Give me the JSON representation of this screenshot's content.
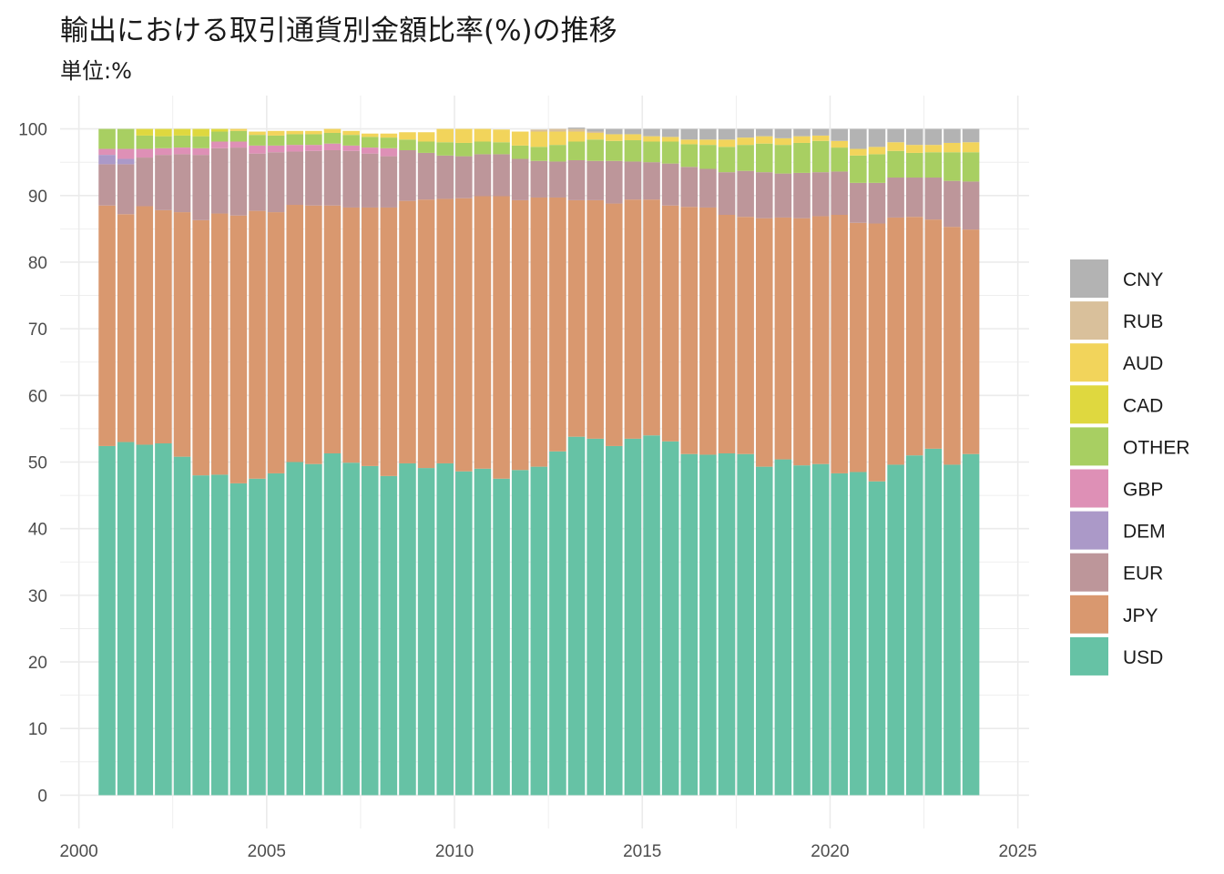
{
  "chart_data": {
    "type": "bar",
    "stacked": true,
    "title": "輸出における取引通貨別金額比率(%)の推移",
    "subtitle": "単位:%",
    "xlabel": "",
    "ylabel": "",
    "xlim": [
      1999.5,
      2025.3
    ],
    "ylim": [
      -5,
      105
    ],
    "xticks": [
      2000,
      2005,
      2010,
      2015,
      2020,
      2025
    ],
    "yticks": [
      0,
      10,
      20,
      30,
      40,
      50,
      60,
      70,
      80,
      90,
      100
    ],
    "grid": true,
    "legend_position": "right",
    "x": [
      2000.75,
      2001.25,
      2001.75,
      2002.25,
      2002.75,
      2003.25,
      2003.75,
      2004.25,
      2004.75,
      2005.25,
      2005.75,
      2006.25,
      2006.75,
      2007.25,
      2007.75,
      2008.25,
      2008.75,
      2009.25,
      2009.75,
      2010.25,
      2010.75,
      2011.25,
      2011.75,
      2012.25,
      2012.75,
      2013.25,
      2013.75,
      2014.25,
      2014.75,
      2015.25,
      2015.75,
      2016.25,
      2016.75,
      2017.25,
      2017.75,
      2018.25,
      2018.75,
      2019.25,
      2019.75,
      2020.25,
      2020.75,
      2021.25,
      2021.75,
      2022.25,
      2022.75,
      2023.25,
      2023.75
    ],
    "series": [
      {
        "name": "USD",
        "color": "#66c2a5",
        "values": [
          52.4,
          53.0,
          52.6,
          52.8,
          50.8,
          48.0,
          48.1,
          46.8,
          47.5,
          48.3,
          50.0,
          49.7,
          51.3,
          49.9,
          49.4,
          47.9,
          49.8,
          49.1,
          49.8,
          48.6,
          49.0,
          47.5,
          48.8,
          49.3,
          51.6,
          53.8,
          53.5,
          52.4,
          53.5,
          54.0,
          53.1,
          51.2,
          51.1,
          51.3,
          51.2,
          49.3,
          50.4,
          49.5,
          49.7,
          48.3,
          48.5,
          47.1,
          49.6,
          51.0,
          52.0,
          49.6,
          51.2
        ]
      },
      {
        "name": "JPY",
        "color": "#d9986f",
        "values": [
          36.1,
          34.2,
          35.8,
          35.0,
          36.7,
          38.3,
          39.2,
          40.2,
          40.2,
          39.2,
          38.6,
          38.8,
          37.2,
          38.3,
          38.8,
          40.3,
          39.4,
          40.3,
          39.7,
          41.0,
          40.9,
          42.4,
          40.5,
          40.4,
          38.1,
          35.5,
          35.8,
          36.4,
          35.9,
          35.4,
          35.4,
          37.1,
          37.1,
          35.8,
          35.6,
          37.3,
          36.3,
          37.1,
          37.2,
          38.8,
          37.4,
          38.7,
          37.1,
          35.8,
          34.4,
          35.7,
          33.7
        ]
      },
      {
        "name": "EUR",
        "color": "#bd969a",
        "values": [
          6.2,
          7.5,
          7.3,
          8.3,
          8.7,
          9.8,
          9.8,
          10.2,
          8.6,
          9.0,
          8.0,
          8.2,
          8.3,
          8.5,
          8.1,
          7.7,
          7.6,
          7.0,
          6.5,
          6.3,
          6.3,
          6.3,
          6.2,
          5.5,
          5.4,
          6.0,
          5.9,
          6.4,
          5.7,
          5.6,
          6.3,
          6.0,
          5.8,
          6.4,
          6.9,
          6.9,
          6.6,
          6.8,
          6.6,
          6.5,
          6.0,
          6.1,
          6.0,
          5.9,
          6.3,
          6.9,
          7.2
        ]
      },
      {
        "name": "DEM",
        "color": "#ab99c8",
        "values": [
          1.4,
          0.8,
          0,
          0,
          0,
          0,
          0,
          0,
          0,
          0,
          0,
          0,
          0,
          0,
          0,
          0,
          0,
          0,
          0,
          0,
          0,
          0,
          0,
          0,
          0,
          0,
          0,
          0,
          0,
          0,
          0,
          0,
          0,
          0,
          0,
          0,
          0,
          0,
          0,
          0,
          0,
          0,
          0,
          0,
          0,
          0,
          0
        ]
      },
      {
        "name": "GBP",
        "color": "#de90b6",
        "values": [
          0.9,
          1.5,
          1.3,
          1.0,
          1.0,
          1.0,
          1.0,
          0.9,
          1.2,
          1.0,
          1.0,
          0.9,
          1.0,
          0.8,
          0.9,
          1.2,
          0,
          0,
          0,
          0,
          0,
          0,
          0,
          0,
          0,
          0,
          0,
          0,
          0,
          0,
          0,
          0,
          0,
          0,
          0,
          0,
          0,
          0,
          0,
          0,
          0,
          0,
          0,
          0,
          0,
          0,
          0
        ]
      },
      {
        "name": "OTHER",
        "color": "#a8cf62",
        "values": [
          3.0,
          3.0,
          2.0,
          1.8,
          1.8,
          1.8,
          1.5,
          1.6,
          1.6,
          1.5,
          1.6,
          1.6,
          1.6,
          1.6,
          1.6,
          1.6,
          1.6,
          1.7,
          2.0,
          2.0,
          1.9,
          1.8,
          2.0,
          2.1,
          2.5,
          2.8,
          3.2,
          3.0,
          3.2,
          3.1,
          3.3,
          3.4,
          3.6,
          3.8,
          3.9,
          4.3,
          4.3,
          4.5,
          4.7,
          3.6,
          4.1,
          4.3,
          4.0,
          3.7,
          3.8,
          4.3,
          4.4
        ]
      },
      {
        "name": "CAD",
        "color": "#dfd83f",
        "values": [
          0,
          0,
          1.0,
          1.1,
          1.0,
          1.1,
          0.4,
          0,
          0,
          0,
          0,
          0,
          0,
          0,
          0,
          0,
          0,
          0,
          0,
          0,
          0,
          0,
          0,
          0,
          0,
          0,
          0,
          0,
          0,
          0,
          0,
          0,
          0,
          0,
          0,
          0,
          0,
          0,
          0,
          0,
          0,
          0,
          0,
          0,
          0,
          0,
          0
        ]
      },
      {
        "name": "AUD",
        "color": "#f2d45b",
        "values": [
          0,
          0,
          0,
          0,
          0,
          0,
          0,
          0.3,
          0.5,
          0.7,
          0.5,
          0.5,
          0.6,
          0.6,
          0.5,
          0.6,
          1.1,
          1.4,
          2.0,
          2.1,
          1.9,
          1.9,
          2.1,
          2.3,
          2.0,
          1.5,
          1.0,
          1.0,
          0.9,
          0.8,
          0.7,
          0.7,
          0.8,
          1.1,
          1.1,
          1.1,
          1.0,
          1.0,
          0.8,
          1.0,
          1.0,
          1.1,
          1.3,
          1.2,
          1.1,
          1.4,
          1.5
        ]
      },
      {
        "name": "RUB",
        "color": "#d9c09b",
        "values": [
          0,
          0,
          0,
          0,
          0,
          0,
          0,
          0,
          0,
          0,
          0,
          0,
          0,
          0,
          0,
          0,
          0,
          0,
          0,
          0,
          0,
          0,
          0,
          0.3,
          0.4,
          0.4,
          0.2,
          0,
          0,
          0,
          0,
          0,
          0,
          0,
          0,
          0,
          0,
          0,
          0,
          0,
          0,
          0,
          0,
          0,
          0,
          0,
          0
        ]
      },
      {
        "name": "CNY",
        "color": "#b3b3b3",
        "values": [
          0,
          0,
          0,
          0,
          0,
          0,
          0,
          0,
          0,
          0,
          0,
          0,
          0,
          0,
          0,
          0,
          0,
          0,
          0,
          0,
          0,
          0,
          0,
          0,
          0,
          0.2,
          0.4,
          0.8,
          0.8,
          1.1,
          1.2,
          1.6,
          1.6,
          1.6,
          1.3,
          1.1,
          1.4,
          1.1,
          1.0,
          1.8,
          3.0,
          2.7,
          2.0,
          2.4,
          2.4,
          2.1,
          2.0
        ]
      }
    ],
    "legend_order": [
      "CNY",
      "RUB",
      "AUD",
      "CAD",
      "OTHER",
      "GBP",
      "DEM",
      "EUR",
      "JPY",
      "USD"
    ]
  }
}
